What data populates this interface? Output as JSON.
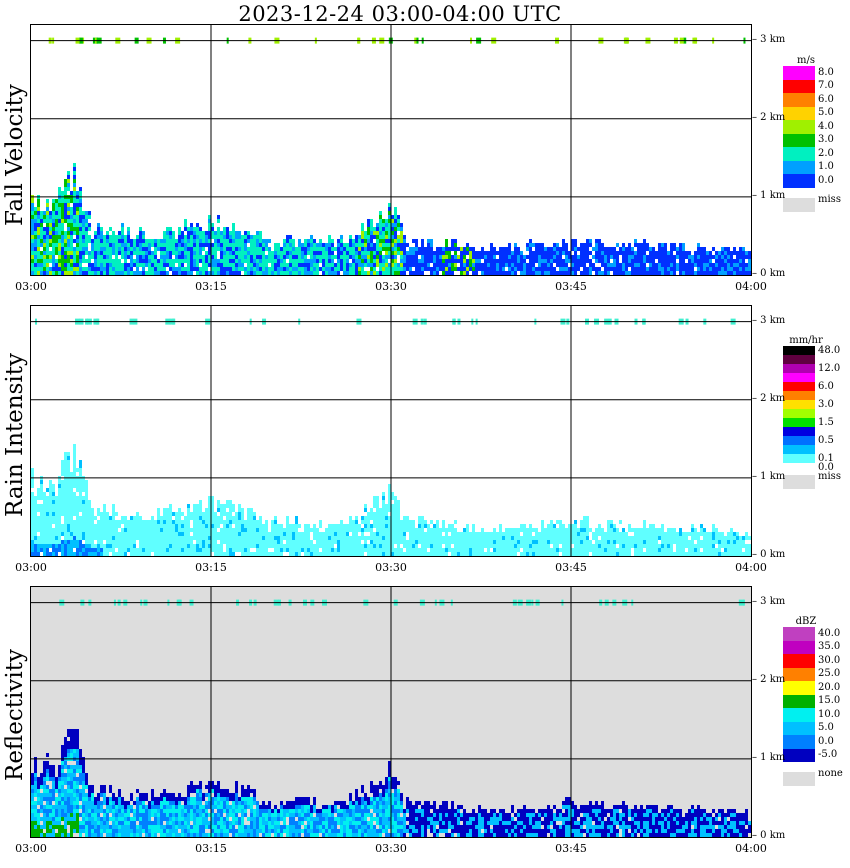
{
  "title": "2023-12-24   03:00-04:00 UTC",
  "x_ticks": [
    "03:00",
    "03:15",
    "03:30",
    "03:45",
    "04:00"
  ],
  "height_ticks": [
    "3 km",
    "2 km",
    "1 km",
    "0 km"
  ],
  "panels": [
    {
      "name": "Fall Velocity",
      "unit": "m/s",
      "legend": [
        {
          "label": "8.0",
          "color": "#ff00ff"
        },
        {
          "label": "7.0",
          "color": "#ff0000"
        },
        {
          "label": "6.0",
          "color": "#ff8000"
        },
        {
          "label": "5.0",
          "color": "#ffd200"
        },
        {
          "label": "4.0",
          "color": "#a0f000"
        },
        {
          "label": "3.0",
          "color": "#00c000"
        },
        {
          "label": "2.0",
          "color": "#00f0c0"
        },
        {
          "label": "1.0",
          "color": "#00a0ff"
        },
        {
          "label": "0.0",
          "color": "#0030ff"
        }
      ],
      "miss_label": "miss",
      "background": "#ffffff"
    },
    {
      "name": "Rain Intensity",
      "unit": "mm/hr",
      "legend": [
        {
          "label": "48.0",
          "color": "#000000"
        },
        {
          "label": "",
          "color": "#600040"
        },
        {
          "label": "12.0",
          "color": "#b000b0"
        },
        {
          "label": "",
          "color": "#ff00ff"
        },
        {
          "label": "6.0",
          "color": "#ff0000"
        },
        {
          "label": "",
          "color": "#ff8000"
        },
        {
          "label": "3.0",
          "color": "#ffe000"
        },
        {
          "label": "",
          "color": "#a0ff00"
        },
        {
          "label": "1.5",
          "color": "#00e000"
        },
        {
          "label": "",
          "color": "#0000e0"
        },
        {
          "label": "0.5",
          "color": "#0070ff"
        },
        {
          "label": "",
          "color": "#00c0ff"
        },
        {
          "label": "0.1",
          "color": "#60ffff"
        },
        {
          "label": "0.0",
          "color": "#ffffff"
        }
      ],
      "miss_label": "miss",
      "background": "#ffffff"
    },
    {
      "name": "Reflectivity",
      "unit": "dBZ",
      "legend": [
        {
          "label": "40.0",
          "color": "#c040c0"
        },
        {
          "label": "35.0",
          "color": "#c000c0"
        },
        {
          "label": "30.0",
          "color": "#ff0000"
        },
        {
          "label": "25.0",
          "color": "#ff8000"
        },
        {
          "label": "20.0",
          "color": "#ffff00"
        },
        {
          "label": "15.0",
          "color": "#00b000"
        },
        {
          "label": "10.0",
          "color": "#00f0f0"
        },
        {
          "label": "5.0",
          "color": "#00c0ff"
        },
        {
          "label": "0.0",
          "color": "#0080ff"
        },
        {
          "label": "-5.0",
          "color": "#0000c0"
        }
      ],
      "miss_label": "none",
      "background": "#dddddd"
    }
  ],
  "chart_data": {
    "type": "heatmap",
    "title": "2023-12-24   03:00-04:00 UTC",
    "x_range": [
      "03:00",
      "04:00"
    ],
    "y_range_km": [
      0,
      3.2
    ],
    "grid": true,
    "precipitation_top_km": [
      [
        0.0,
        1.0
      ],
      [
        2.0,
        0.95
      ],
      [
        3.5,
        1.45
      ],
      [
        5.0,
        0.6
      ],
      [
        10.0,
        0.55
      ],
      [
        14.0,
        0.65
      ],
      [
        15.0,
        0.75
      ],
      [
        20.0,
        0.45
      ],
      [
        26.0,
        0.45
      ],
      [
        29.0,
        0.75
      ],
      [
        30.0,
        0.95
      ],
      [
        31.0,
        0.45
      ],
      [
        35.0,
        0.4
      ],
      [
        37.0,
        0.35
      ],
      [
        40.0,
        0.35
      ],
      [
        45.0,
        0.45
      ],
      [
        50.0,
        0.4
      ],
      [
        55.0,
        0.35
      ],
      [
        60.0,
        0.3
      ]
    ],
    "echo_height_km": 3.0
  }
}
